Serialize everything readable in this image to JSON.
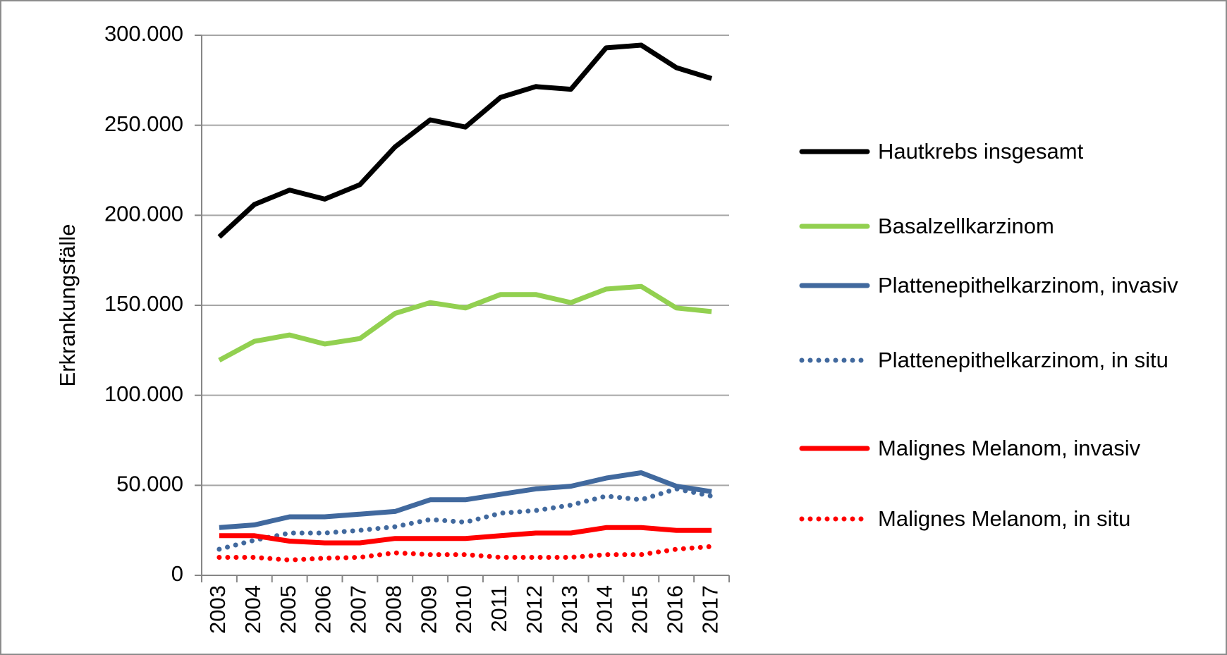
{
  "chart_data": {
    "type": "line",
    "ylabel": "Erkrankungsfälle",
    "categories": [
      "2003",
      "2004",
      "2005",
      "2006",
      "2007",
      "2008",
      "2009",
      "2010",
      "2011",
      "2012",
      "2013",
      "2014",
      "2015",
      "2016",
      "2017"
    ],
    "ylim": [
      0,
      300000
    ],
    "yticks": [
      0,
      {
        "value": 50000,
        "label": "50.000"
      },
      {
        "value": 100000,
        "label": "100.000"
      },
      {
        "value": 150000,
        "label": "150.000"
      },
      {
        "value": 200000,
        "label": "200.000"
      },
      {
        "value": 250000,
        "label": "250.000"
      },
      {
        "value": 300000,
        "label": "300.000"
      }
    ],
    "grid": true,
    "legend": "right",
    "series": [
      {
        "name": "Hautkrebs insgesamt",
        "color": "#000000",
        "style": "solid",
        "values": [
          188000,
          206000,
          214000,
          209000,
          217000,
          238000,
          253000,
          249000,
          265500,
          271500,
          270000,
          293000,
          294500,
          282000,
          276000
        ]
      },
      {
        "name": "Basalzellkarzinom",
        "color": "#92d050",
        "style": "solid",
        "values": [
          119500,
          130000,
          133500,
          128500,
          131500,
          145500,
          151500,
          148500,
          156000,
          156000,
          151500,
          159000,
          160500,
          148500,
          146500
        ]
      },
      {
        "name": "Plattenepithelkarzinom, invasiv",
        "color": "#41699e",
        "style": "solid",
        "values": [
          26500,
          28000,
          32500,
          32500,
          34000,
          35500,
          42000,
          42000,
          45000,
          48000,
          49500,
          54000,
          57000,
          49500,
          46500
        ]
      },
      {
        "name": "Plattenepithelkarzinom, in situ",
        "color": "#41699e",
        "style": "dotted",
        "values": [
          14500,
          19500,
          23500,
          23500,
          25000,
          27000,
          31000,
          29500,
          34500,
          36000,
          39000,
          44000,
          42000,
          48000,
          44000
        ]
      },
      {
        "name": "Malignes Melanom, invasiv",
        "color": "#ff0000",
        "style": "solid",
        "values": [
          22000,
          22000,
          19000,
          18000,
          18000,
          20500,
          20500,
          20500,
          22000,
          23500,
          23500,
          26500,
          26500,
          25000,
          25000
        ]
      },
      {
        "name": "Malignes Melanom, in situ",
        "color": "#ff0000",
        "style": "dotted",
        "values": [
          10000,
          10000,
          8500,
          9500,
          10000,
          12500,
          11500,
          11500,
          10000,
          10000,
          10000,
          11500,
          11500,
          14500,
          16000
        ]
      }
    ]
  }
}
